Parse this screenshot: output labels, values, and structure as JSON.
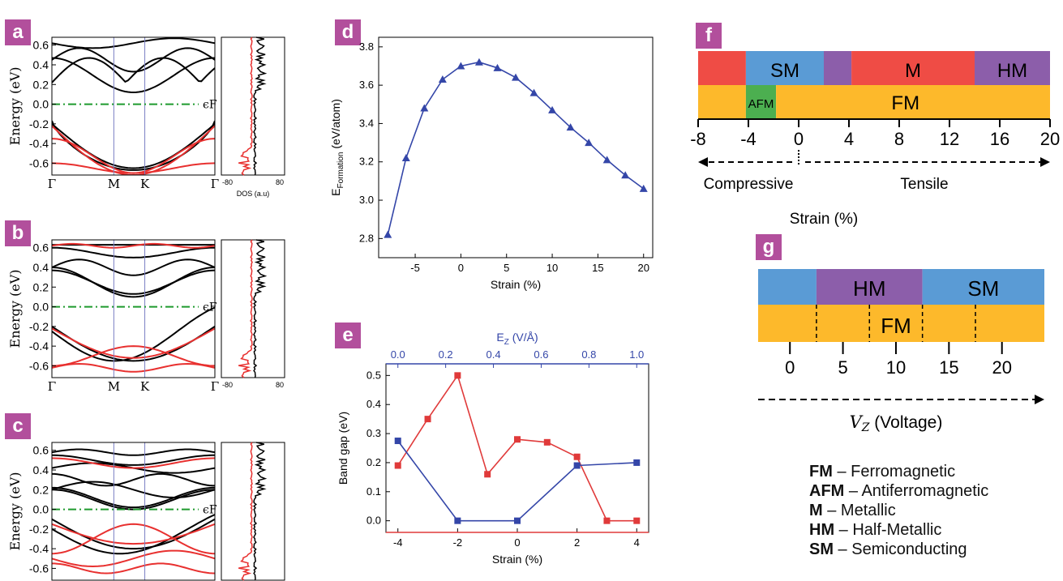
{
  "panel_labels": [
    "a",
    "b",
    "c",
    "d",
    "e",
    "f",
    "g"
  ],
  "colors": {
    "label_bg": "#b24f9c",
    "band_black": "#000000",
    "band_red": "#e8302f",
    "fermi": "#1e9a2e",
    "line_blue": "#3446a8",
    "line_red": "#e03a3a",
    "red_box": "#ef4c45",
    "blue_box": "#5a9bd5",
    "purple_box": "#8c5eaa",
    "orange_box": "#fdb92b",
    "green_box": "#4caf50"
  },
  "band_panels": {
    "ylabel": "Energy (eV)",
    "yticks": [
      "0.6",
      "0.4",
      "0.2",
      "0.0",
      "-0.2",
      "-0.4",
      "-0.6"
    ],
    "kpoints": [
      "Γ",
      "M",
      "K",
      "Γ"
    ],
    "fermi_label": "ϵF",
    "dos_label": "DOS (a.u)",
    "dos_ticks": [
      "-80",
      "80"
    ]
  },
  "chart_data": [
    {
      "id": "d",
      "type": "line",
      "xlabel": "Strain (%)",
      "ylabel": "EFormation (eV/atom)",
      "xlim": [
        -9,
        21
      ],
      "ylim": [
        2.7,
        3.85
      ],
      "xticks": [
        -5,
        0,
        5,
        10,
        15,
        20
      ],
      "yticks": [
        2.8,
        3.0,
        3.2,
        3.4,
        3.6,
        3.8
      ],
      "series": [
        {
          "x": [
            -8,
            -6,
            -4,
            -2,
            0,
            2,
            4,
            6,
            8,
            10,
            12,
            14,
            16,
            18,
            20
          ],
          "values": [
            2.82,
            3.22,
            3.48,
            3.63,
            3.7,
            3.72,
            3.69,
            3.64,
            3.56,
            3.47,
            3.38,
            3.3,
            3.21,
            3.13,
            3.06
          ]
        }
      ]
    },
    {
      "id": "e",
      "type": "line",
      "xlabel": "Strain (%)",
      "ylabel": "Band gap (eV)",
      "top_xlabel": "EZ (V/Å)",
      "xlim": [
        -4.4,
        4.4
      ],
      "ylim": [
        -0.04,
        0.54
      ],
      "xticks": [
        -4,
        -2,
        0,
        2,
        4
      ],
      "top_xticks": [
        "0.0",
        "0.2",
        "0.4",
        "0.6",
        "0.8",
        "1.0"
      ],
      "yticks": [
        0.0,
        0.1,
        0.2,
        0.3,
        0.4,
        0.5
      ],
      "series": [
        {
          "color": "red",
          "x": [
            -4,
            -3,
            -2,
            -1,
            0,
            1,
            2,
            3,
            4
          ],
          "values": [
            0.19,
            0.35,
            0.5,
            0.16,
            0.28,
            0.27,
            0.22,
            0.0,
            0.0
          ]
        },
        {
          "color": "blue",
          "x": [
            -4,
            -2,
            0,
            2,
            4
          ],
          "values": [
            0.275,
            0.0,
            0.0,
            0.19,
            0.2
          ]
        }
      ]
    }
  ],
  "phase_f": {
    "top": [
      {
        "label": "",
        "from": -8,
        "to": -4.2,
        "color": "red"
      },
      {
        "label": "SM",
        "from": -4.2,
        "to": 2,
        "color": "blue"
      },
      {
        "label": "",
        "from": 2,
        "to": 4.2,
        "color": "purple"
      },
      {
        "label": "M",
        "from": 4.2,
        "to": 14,
        "color": "red"
      },
      {
        "label": "HM",
        "from": 14,
        "to": 20,
        "color": "purple"
      }
    ],
    "bottom": [
      {
        "label": "",
        "from": -8,
        "to": -4.2,
        "color": "orange"
      },
      {
        "label": "AFM",
        "from": -4.2,
        "to": -1.8,
        "color": "green"
      },
      {
        "label": "FM",
        "from": -1.8,
        "to": 20,
        "color": "orange"
      }
    ],
    "ticks": [
      "-8",
      "-4",
      "0",
      "4",
      "8",
      "12",
      "16",
      "20"
    ],
    "compressive": "Compressive",
    "tensile": "Tensile",
    "xlabel": "Strain (%)"
  },
  "phase_g": {
    "top": [
      {
        "label": "",
        "from": -3,
        "to": 2.5,
        "color": "blue"
      },
      {
        "label": "HM",
        "from": 2.5,
        "to": 12.5,
        "color": "purple"
      },
      {
        "label": "SM",
        "from": 12.5,
        "to": 24,
        "color": "blue"
      }
    ],
    "bottom_label": "FM",
    "ticks": [
      "0",
      "5",
      "10",
      "15",
      "20"
    ],
    "xlabel": "VZ (Voltage)"
  },
  "legend": [
    {
      "abbr": "FM",
      "text": " – Ferromagnetic"
    },
    {
      "abbr": "AFM",
      "text": " – Antiferromagnetic"
    },
    {
      "abbr": "M",
      "text": " – Metallic"
    },
    {
      "abbr": "HM",
      "text": " – Half-Metallic"
    },
    {
      "abbr": "SM",
      "text": " – Semiconducting"
    }
  ]
}
